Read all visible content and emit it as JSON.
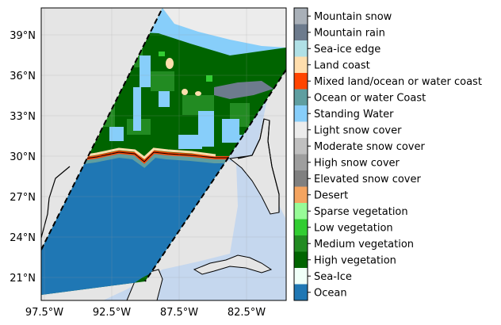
{
  "map": {
    "lat_ticks": [
      "39°N",
      "36°N",
      "33°N",
      "30°N",
      "27°N",
      "24°N",
      "21°N"
    ],
    "lon_ticks": [
      "97.5°W",
      "92.5°W",
      "87.5°W",
      "82.5°W"
    ],
    "colors": {
      "background_land": "#e5e5e5",
      "outside_ocean": "#c5d7ee",
      "gulf_ocean": "#1f77b4",
      "coast_edge": "#c9302c",
      "coast_fringe": "#5f9ea0",
      "swath_border": "#000000"
    }
  },
  "legend": {
    "items": [
      {
        "label": "Mountain snow",
        "color": "#a9b0b8"
      },
      {
        "label": "Mountain rain",
        "color": "#6d7b8d"
      },
      {
        "label": "Sea-ice edge",
        "color": "#b0e0e6"
      },
      {
        "label": "Land coast",
        "color": "#ffdead"
      },
      {
        "label": "Mixed land/ocean or water coast",
        "color": "#ff4500"
      },
      {
        "label": "Ocean or water Coast",
        "color": "#5f9ea0"
      },
      {
        "label": "Standing Water",
        "color": "#87cefa"
      },
      {
        "label": "Light snow cover",
        "color": "#ececec"
      },
      {
        "label": "Moderate snow cover",
        "color": "#c0c0c0"
      },
      {
        "label": "High snow cover",
        "color": "#9e9e9e"
      },
      {
        "label": "Elevated snow cover",
        "color": "#808080"
      },
      {
        "label": "Desert",
        "color": "#f4a460"
      },
      {
        "label": "Sparse vegetation",
        "color": "#98fb98"
      },
      {
        "label": "Low vegetation",
        "color": "#32cd32"
      },
      {
        "label": "Medium vegetation",
        "color": "#228b22"
      },
      {
        "label": "High vegetation",
        "color": "#006400"
      },
      {
        "label": "Sea-Ice",
        "color": "#f0fff8"
      },
      {
        "label": "Ocean",
        "color": "#1f77b4"
      }
    ]
  }
}
